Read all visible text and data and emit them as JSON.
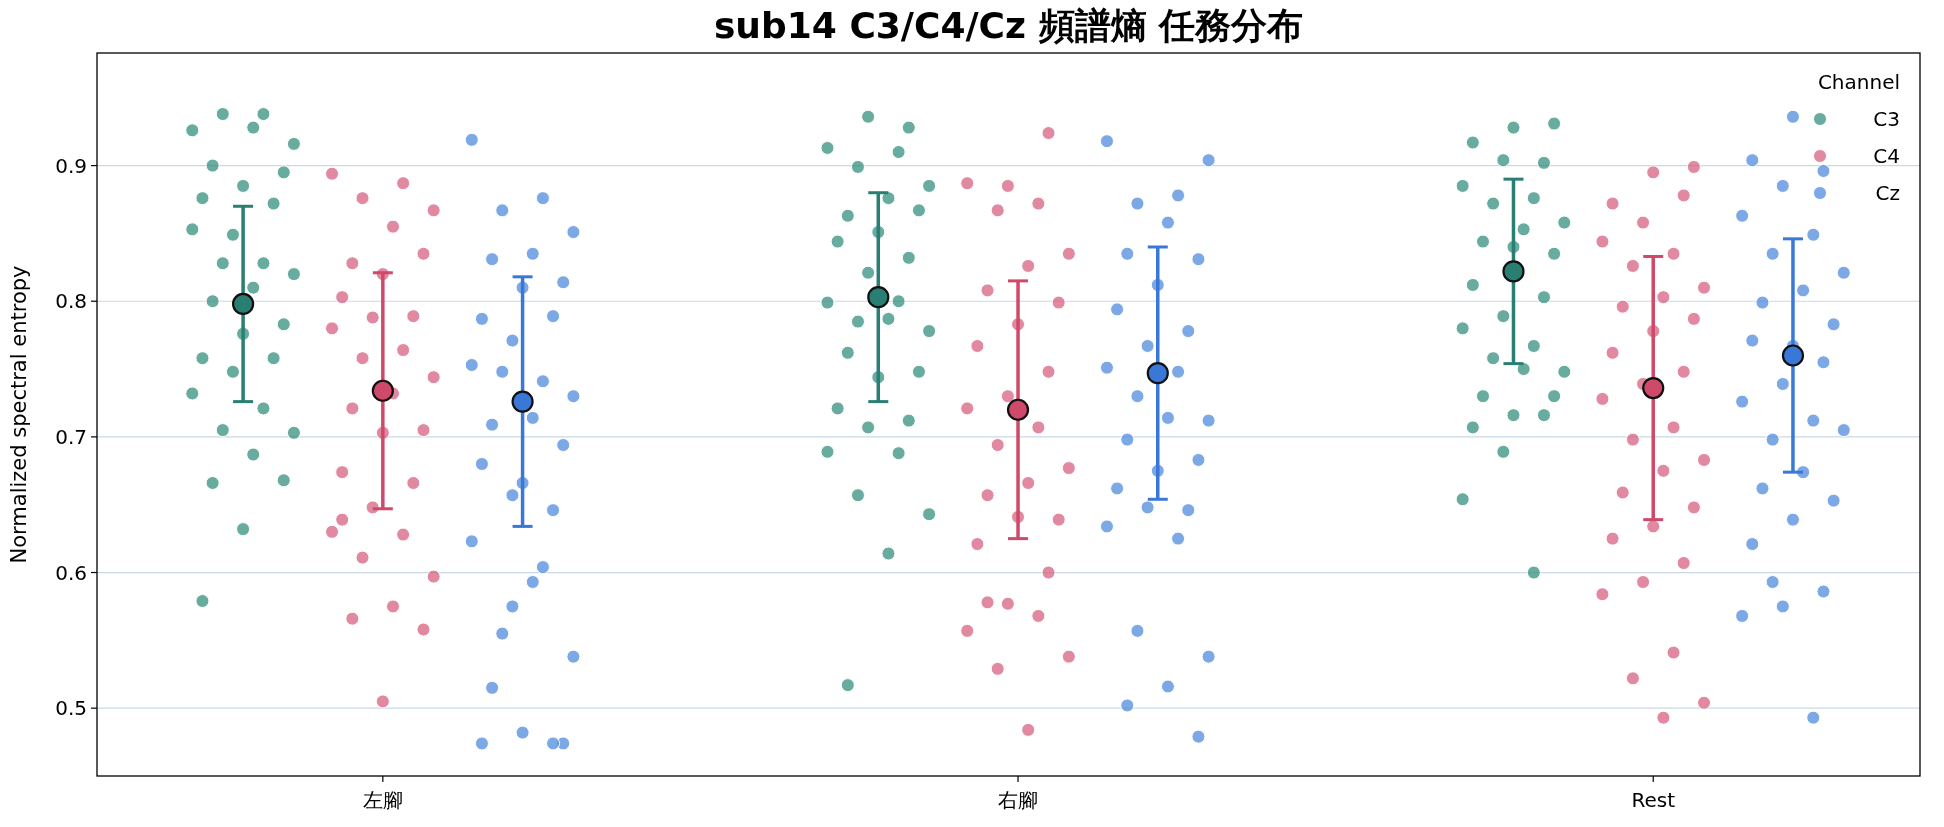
{
  "chart_data": {
    "type": "scatter",
    "title": "sub14 C3/C4/Cz 頻譜熵 任務分布",
    "ylabel": "Normalized spectral entropy",
    "legend_title": "Channel",
    "legend": "top right",
    "grid": "y",
    "marker": "circle",
    "categories": [
      "左腳",
      "右腳",
      "Rest"
    ],
    "ylim": [
      0.45,
      0.983
    ],
    "yticks": [
      0.5,
      0.6,
      0.7,
      0.8,
      0.9
    ],
    "series": [
      {
        "name": "C3",
        "color": "#2e8b7a",
        "x": [
          "左腳",
          "左腳",
          "左腳",
          "左腳",
          "左腳",
          "左腳",
          "左腳",
          "左腳",
          "左腳",
          "左腳",
          "左腳",
          "左腳",
          "左腳",
          "左腳",
          "左腳",
          "左腳",
          "左腳",
          "左腳",
          "左腳",
          "左腳",
          "左腳",
          "左腳",
          "左腳",
          "左腳",
          "左腳",
          "左腳",
          "左腳",
          "左腳",
          "左腳",
          "左腳",
          "左腳",
          "右腳",
          "右腳",
          "右腳",
          "右腳",
          "右腳",
          "右腳",
          "右腳",
          "右腳",
          "右腳",
          "右腳",
          "右腳",
          "右腳",
          "右腳",
          "右腳",
          "右腳",
          "右腳",
          "右腳",
          "右腳",
          "右腳",
          "右腳",
          "右腳",
          "右腳",
          "右腳",
          "右腳",
          "右腳",
          "右腳",
          "右腳",
          "右腳",
          "右腳",
          "右腳",
          "Rest",
          "Rest",
          "Rest",
          "Rest",
          "Rest",
          "Rest",
          "Rest",
          "Rest",
          "Rest",
          "Rest",
          "Rest",
          "Rest",
          "Rest",
          "Rest",
          "Rest",
          "Rest",
          "Rest",
          "Rest",
          "Rest",
          "Rest",
          "Rest",
          "Rest",
          "Rest",
          "Rest",
          "Rest",
          "Rest",
          "Rest",
          "Rest",
          "Rest"
        ],
        "values": [
          0.926,
          0.938,
          0.938,
          0.916,
          0.928,
          0.9,
          0.895,
          0.885,
          0.876,
          0.872,
          0.849,
          0.853,
          0.828,
          0.828,
          0.82,
          0.81,
          0.8,
          0.783,
          0.776,
          0.758,
          0.758,
          0.748,
          0.732,
          0.721,
          0.705,
          0.703,
          0.687,
          0.666,
          0.668,
          0.632,
          0.579,
          0.928,
          0.936,
          0.913,
          0.91,
          0.899,
          0.885,
          0.876,
          0.863,
          0.867,
          0.851,
          0.844,
          0.832,
          0.821,
          0.799,
          0.8,
          0.785,
          0.778,
          0.787,
          0.762,
          0.748,
          0.744,
          0.721,
          0.712,
          0.707,
          0.689,
          0.688,
          0.657,
          0.643,
          0.614,
          0.517,
          0.931,
          0.928,
          0.917,
          0.902,
          0.904,
          0.885,
          0.876,
          0.872,
          0.858,
          0.853,
          0.844,
          0.835,
          0.84,
          0.812,
          0.803,
          0.789,
          0.78,
          0.767,
          0.758,
          0.748,
          0.75,
          0.73,
          0.73,
          0.716,
          0.707,
          0.716,
          0.689,
          0.654,
          0.6
        ]
      },
      {
        "name": "C4",
        "color": "#d45c7c",
        "x": [
          "左腳",
          "左腳",
          "左腳",
          "左腳",
          "左腳",
          "左腳",
          "左腳",
          "左腳",
          "左腳",
          "左腳",
          "左腳",
          "左腳",
          "左腳",
          "左腳",
          "左腳",
          "左腳",
          "左腳",
          "左腳",
          "左腳",
          "左腳",
          "左腳",
          "左腳",
          "左腳",
          "左腳",
          "左腳",
          "左腳",
          "左腳",
          "左腳",
          "左腳",
          "左腳",
          "左腳",
          "右腳",
          "右腳",
          "右腳",
          "右腳",
          "右腳",
          "右腳",
          "右腳",
          "右腳",
          "右腳",
          "右腳",
          "右腳",
          "右腳",
          "右腳",
          "右腳",
          "右腳",
          "右腳",
          "右腳",
          "右腳",
          "右腳",
          "右腳",
          "右腳",
          "右腳",
          "右腳",
          "右腳",
          "右腳",
          "右腳",
          "右腳",
          "右腳",
          "右腳",
          "右腳",
          "Rest",
          "Rest",
          "Rest",
          "Rest",
          "Rest",
          "Rest",
          "Rest",
          "Rest",
          "Rest",
          "Rest",
          "Rest",
          "Rest",
          "Rest",
          "Rest",
          "Rest",
          "Rest",
          "Rest",
          "Rest",
          "Rest",
          "Rest",
          "Rest",
          "Rest",
          "Rest",
          "Rest",
          "Rest",
          "Rest",
          "Rest",
          "Rest",
          "Rest",
          "Rest",
          "Rest",
          "Rest"
        ],
        "values": [
          0.894,
          0.887,
          0.876,
          0.867,
          0.855,
          0.828,
          0.835,
          0.82,
          0.803,
          0.789,
          0.788,
          0.78,
          0.764,
          0.758,
          0.744,
          0.732,
          0.721,
          0.705,
          0.703,
          0.674,
          0.666,
          0.648,
          0.63,
          0.628,
          0.611,
          0.597,
          0.575,
          0.566,
          0.558,
          0.505,
          0.639,
          0.924,
          0.885,
          0.887,
          0.872,
          0.867,
          0.835,
          0.826,
          0.808,
          0.799,
          0.783,
          0.767,
          0.748,
          0.73,
          0.721,
          0.707,
          0.694,
          0.677,
          0.666,
          0.657,
          0.639,
          0.641,
          0.621,
          0.6,
          0.577,
          0.557,
          0.568,
          0.529,
          0.538,
          0.484,
          0.578,
          0.899,
          0.895,
          0.872,
          0.878,
          0.858,
          0.844,
          0.835,
          0.826,
          0.81,
          0.803,
          0.796,
          0.787,
          0.778,
          0.762,
          0.748,
          0.739,
          0.728,
          0.707,
          0.698,
          0.683,
          0.675,
          0.659,
          0.648,
          0.634,
          0.625,
          0.607,
          0.593,
          0.584,
          0.541,
          0.522,
          0.504,
          0.493
        ]
      },
      {
        "name": "Cz",
        "color": "#4a86dc",
        "x": [
          "左腳",
          "左腳",
          "左腳",
          "左腳",
          "左腳",
          "左腳",
          "左腳",
          "左腳",
          "左腳",
          "左腳",
          "左腳",
          "左腳",
          "左腳",
          "左腳",
          "左腳",
          "左腳",
          "左腳",
          "左腳",
          "左腳",
          "左腳",
          "左腳",
          "左腳",
          "左腳",
          "左腳",
          "左腳",
          "左腳",
          "左腳",
          "左腳",
          "左腳",
          "左腳",
          "左腳",
          "左腳",
          "左腳",
          "右腳",
          "右腳",
          "右腳",
          "右腳",
          "右腳",
          "右腳",
          "右腳",
          "右腳",
          "右腳",
          "右腳",
          "右腳",
          "右腳",
          "右腳",
          "右腳",
          "右腳",
          "右腳",
          "右腳",
          "右腳",
          "右腳",
          "右腳",
          "右腳",
          "右腳",
          "右腳",
          "右腳",
          "右腳",
          "右腳",
          "右腳",
          "右腳",
          "右腳",
          "Rest",
          "Rest",
          "Rest",
          "Rest",
          "Rest",
          "Rest",
          "Rest",
          "Rest",
          "Rest",
          "Rest",
          "Rest",
          "Rest",
          "Rest",
          "Rest",
          "Rest",
          "Rest",
          "Rest",
          "Rest",
          "Rest",
          "Rest",
          "Rest",
          "Rest",
          "Rest",
          "Rest",
          "Rest",
          "Rest",
          "Rest",
          "Rest",
          "Rest"
        ],
        "values": [
          0.919,
          0.876,
          0.867,
          0.851,
          0.835,
          0.831,
          0.814,
          0.81,
          0.787,
          0.789,
          0.771,
          0.753,
          0.741,
          0.748,
          0.73,
          0.714,
          0.709,
          0.694,
          0.666,
          0.68,
          0.646,
          0.657,
          0.623,
          0.604,
          0.555,
          0.538,
          0.593,
          0.515,
          0.474,
          0.482,
          0.474,
          0.474,
          0.575,
          0.918,
          0.878,
          0.872,
          0.904,
          0.858,
          0.835,
          0.831,
          0.812,
          0.794,
          0.778,
          0.767,
          0.751,
          0.748,
          0.73,
          0.712,
          0.714,
          0.698,
          0.683,
          0.675,
          0.662,
          0.646,
          0.648,
          0.634,
          0.625,
          0.557,
          0.538,
          0.516,
          0.502,
          0.479,
          0.936,
          0.904,
          0.896,
          0.885,
          0.863,
          0.849,
          0.835,
          0.821,
          0.808,
          0.799,
          0.783,
          0.767,
          0.771,
          0.755,
          0.739,
          0.726,
          0.712,
          0.698,
          0.705,
          0.674,
          0.662,
          0.653,
          0.639,
          0.621,
          0.586,
          0.575,
          0.568,
          0.493,
          0.593
        ]
      },
      {
        "color": "#2a7f73",
        "x": [
          "左腳",
          "右腳",
          "Rest"
        ],
        "values": [
          0.798,
          0.803,
          0.822
        ],
        "errors": [
          0.072,
          0.077,
          0.068
        ]
      },
      {
        "color": "#cf4a6a",
        "x": [
          "左腳",
          "右腳",
          "Rest"
        ],
        "values": [
          0.734,
          0.72,
          0.736
        ],
        "errors": [
          0.087,
          0.095,
          0.097
        ]
      },
      {
        "color": "#3a78d8",
        "x": [
          "左腳",
          "右腳",
          "Rest"
        ],
        "values": [
          0.726,
          0.747,
          0.76
        ],
        "errors": [
          0.092,
          0.093,
          0.086
        ]
      }
    ]
  }
}
